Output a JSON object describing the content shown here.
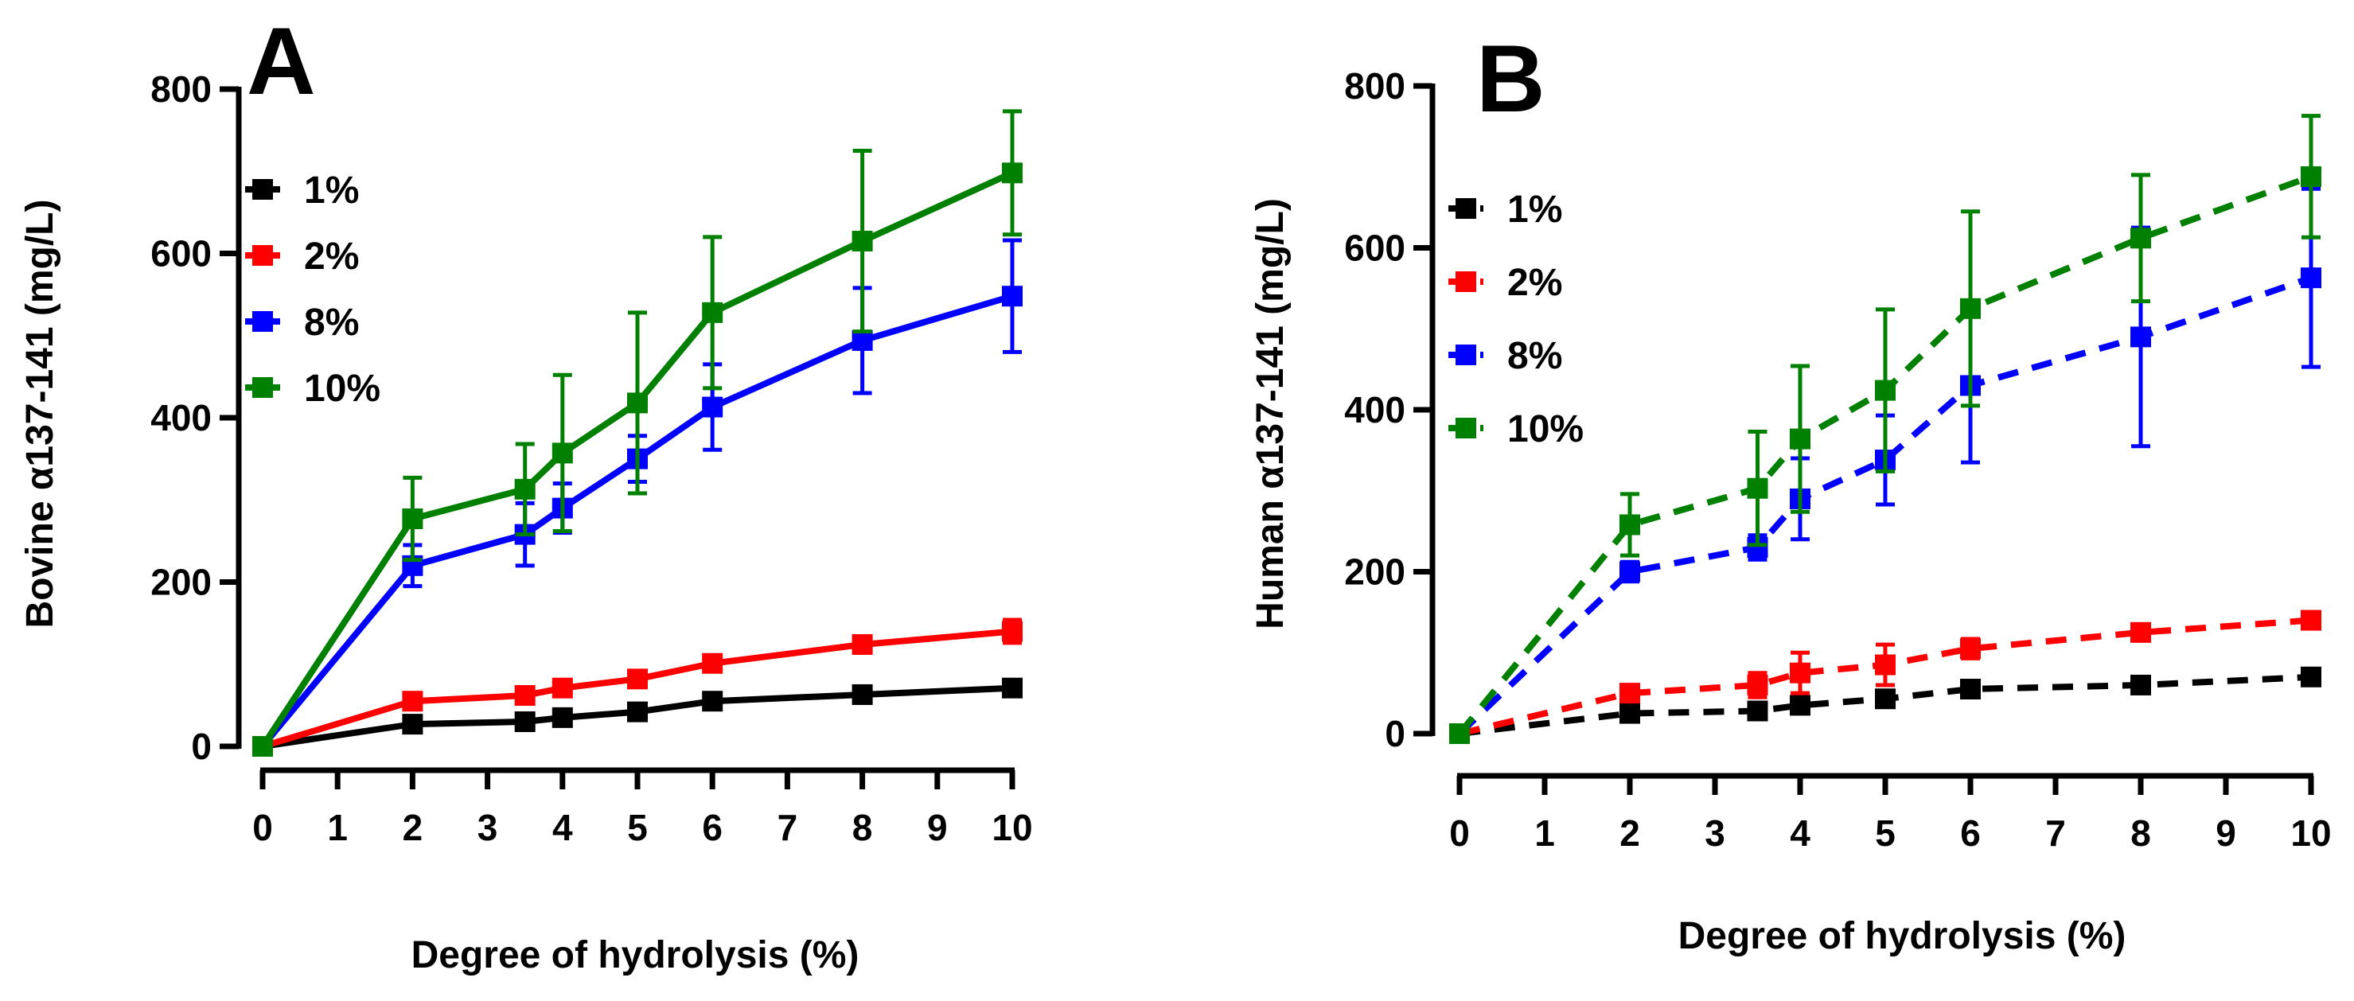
{
  "chart_data": [
    {
      "type": "line",
      "panel_label": "A",
      "xlabel": "Degree of hydrolysis (%)",
      "ylabel": "Bovine α137-141 (mg/L)",
      "xlim": [
        0,
        10
      ],
      "ylim": [
        0,
        800
      ],
      "xticks": [
        0,
        1,
        2,
        3,
        4,
        5,
        6,
        7,
        8,
        9,
        10
      ],
      "yticks": [
        0,
        200,
        400,
        600,
        800
      ],
      "line_style": "solid",
      "x": [
        0,
        2,
        3.5,
        4,
        5,
        6,
        8,
        10
      ],
      "series": [
        {
          "name": "1%",
          "color": "#000000",
          "values": [
            0,
            27,
            30,
            35,
            42,
            55,
            63,
            71
          ],
          "errors": [
            0,
            5,
            5,
            6,
            6,
            6,
            6,
            7
          ]
        },
        {
          "name": "2%",
          "color": "#ff0000",
          "values": [
            0,
            55,
            62,
            71,
            82,
            101,
            124,
            140
          ],
          "errors": [
            0,
            8,
            8,
            8,
            9,
            9,
            10,
            14
          ]
        },
        {
          "name": "8%",
          "color": "#0000ff",
          "values": [
            0,
            220,
            258,
            290,
            350,
            413,
            494,
            548
          ],
          "errors": [
            0,
            25,
            38,
            30,
            28,
            52,
            64,
            68
          ]
        },
        {
          "name": "10%",
          "color": "#008000",
          "values": [
            0,
            277,
            313,
            357,
            418,
            528,
            615,
            698
          ],
          "errors": [
            0,
            50,
            55,
            95,
            110,
            92,
            110,
            75
          ]
        }
      ],
      "legend": [
        "1%",
        "2%",
        "8%",
        "10%"
      ],
      "legend_position": "top-left"
    },
    {
      "type": "line",
      "panel_label": "B",
      "xlabel": "Degree of hydrolysis (%)",
      "ylabel": "Human α137-141 (mg/L)",
      "xlim": [
        0,
        10
      ],
      "ylim": [
        0,
        800
      ],
      "xticks": [
        0,
        1,
        2,
        3,
        4,
        5,
        6,
        7,
        8,
        9,
        10
      ],
      "yticks": [
        0,
        200,
        400,
        600,
        800
      ],
      "line_style": "dashed",
      "x": [
        0,
        2,
        3.5,
        4,
        5,
        6,
        8,
        10
      ],
      "series": [
        {
          "name": "1%",
          "color": "#000000",
          "values": [
            0,
            25,
            28,
            35,
            43,
            55,
            60,
            70
          ],
          "errors": [
            0,
            5,
            5,
            6,
            6,
            6,
            6,
            7
          ]
        },
        {
          "name": "2%",
          "color": "#ff0000",
          "values": [
            0,
            50,
            60,
            75,
            85,
            105,
            125,
            140
          ],
          "errors": [
            0,
            10,
            15,
            25,
            25,
            12,
            10,
            10
          ]
        },
        {
          "name": "8%",
          "color": "#0000ff",
          "values": [
            0,
            200,
            230,
            290,
            338,
            430,
            490,
            563
          ],
          "errors": [
            0,
            12,
            15,
            50,
            55,
            95,
            135,
            110
          ]
        },
        {
          "name": "10%",
          "color": "#008000",
          "values": [
            0,
            258,
            303,
            364,
            424,
            525,
            612,
            688
          ],
          "errors": [
            0,
            38,
            70,
            90,
            100,
            120,
            78,
            75
          ]
        }
      ],
      "legend": [
        "1%",
        "2%",
        "8%",
        "10%"
      ],
      "legend_position": "top-left"
    }
  ]
}
